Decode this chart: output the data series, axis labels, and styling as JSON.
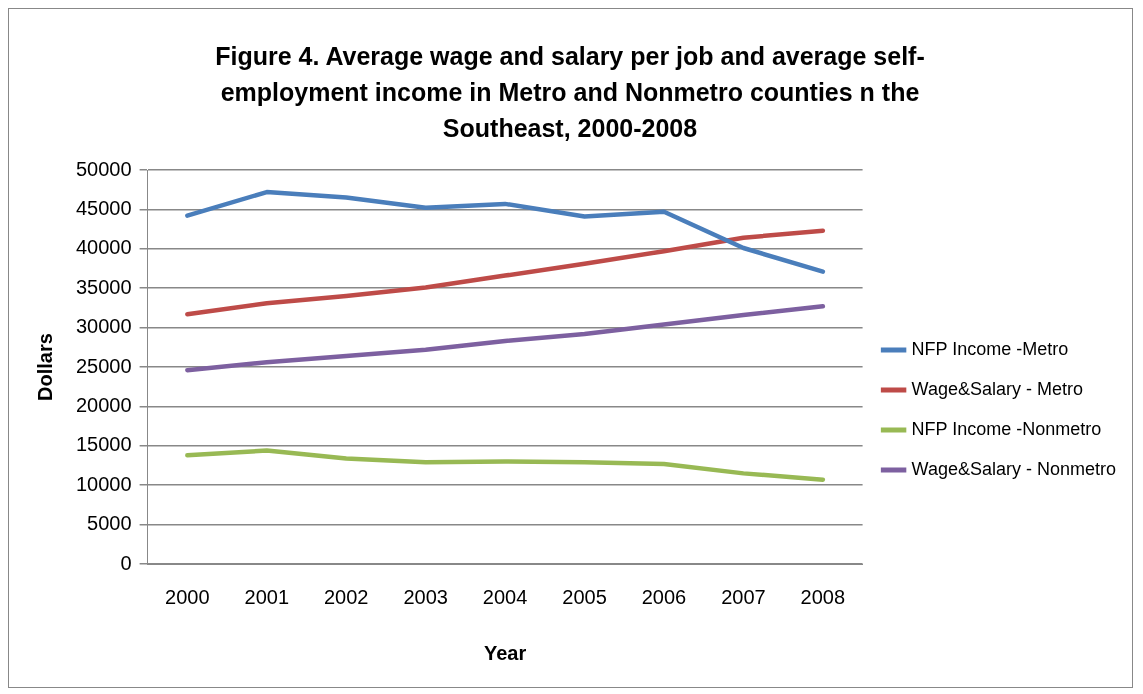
{
  "chart_data": {
    "type": "line",
    "title": "Figure 4. Average wage and salary per job and average  self-employment income in Metro and Nonmetro counties n the Southeast, 2000-2008",
    "xlabel": "Year",
    "ylabel": "Dollars",
    "categories": [
      "2000",
      "2001",
      "2002",
      "2003",
      "2004",
      "2005",
      "2006",
      "2007",
      "2008"
    ],
    "series": [
      {
        "name": "NFP Income -Metro",
        "color": "#4a7ebb",
        "values": [
          44200,
          47200,
          46500,
          45200,
          45700,
          44100,
          44700,
          40100,
          37100
        ]
      },
      {
        "name": "Wage&Salary - Metro",
        "color": "#be4b48",
        "values": [
          31700,
          33100,
          34000,
          35100,
          36600,
          38100,
          39700,
          41400,
          42300
        ]
      },
      {
        "name": "NFP Income -Nonmetro",
        "color": "#98b954",
        "values": [
          13800,
          14400,
          13400,
          12900,
          13000,
          12900,
          12700,
          11500,
          10700
        ]
      },
      {
        "name": "Wage&Salary - Nonmetro",
        "color": "#7d60a0",
        "values": [
          24600,
          25600,
          26400,
          27200,
          28300,
          29200,
          30400,
          31600,
          32700
        ]
      }
    ],
    "ylim": [
      0,
      50000
    ],
    "yticks": [
      0,
      5000,
      10000,
      15000,
      20000,
      25000,
      30000,
      35000,
      40000,
      45000,
      50000
    ],
    "grid": "y",
    "legend": "right",
    "marker": "none",
    "line_style": "solid"
  }
}
